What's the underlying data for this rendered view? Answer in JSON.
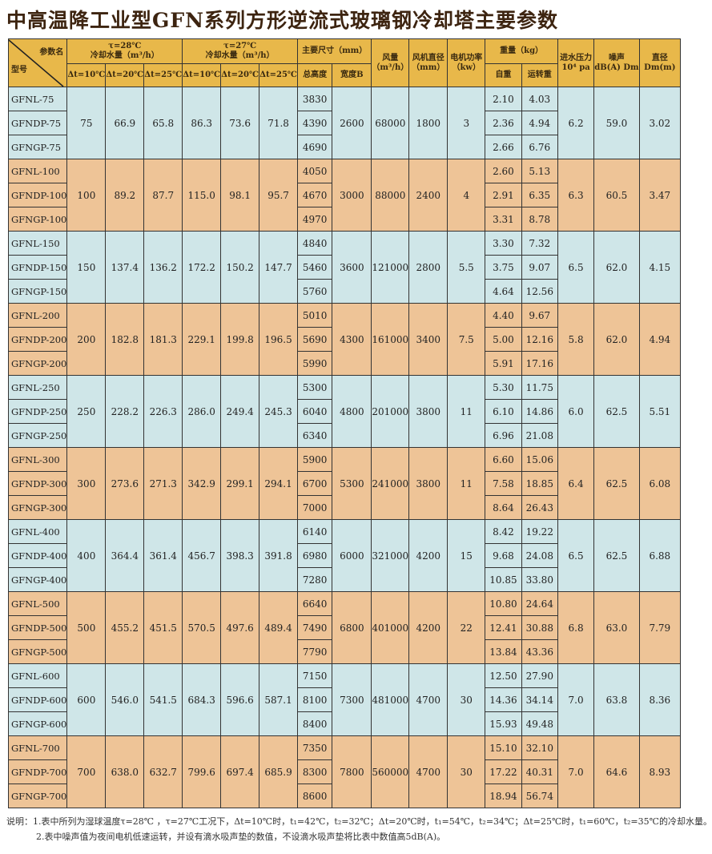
{
  "title": "中高温降工业型GFN系列方形逆流式玻璃钢冷却塔主要参数",
  "header": {
    "param_name": "参数名",
    "model": "型号",
    "g28_line1": "τ=28℃",
    "g28_line2": "冷却水量（m³/h）",
    "g27_line1": "τ=27℃",
    "g27_line2": "冷却水量（m³/h）",
    "dt10": "Δt=10℃",
    "dt20": "Δt=20℃",
    "dt25": "Δt=25℃",
    "dims": "主要尺寸（mm）",
    "total_height": "总高度",
    "width_b": "宽度B",
    "airflow": "风量",
    "airflow_unit": "（m³/h）",
    "fan_dia": "风机直径",
    "fan_dia_unit": "（mm）",
    "motor": "电机功率",
    "motor_unit": "（kw）",
    "weight": "重量（kg）",
    "self_weight": "自重",
    "run_weight": "运转重",
    "pressure": "进水压力",
    "pressure_unit": "10⁴ pa",
    "noise": "噪声",
    "noise_unit": "dB(A) Dm",
    "diameter": "直径",
    "diameter_unit": "Dm(m)"
  },
  "groups": [
    {
      "models": [
        "GFNL-75",
        "GFNDP-75",
        "GFNGP-75"
      ],
      "f28": [
        "75",
        "66.9",
        "65.8"
      ],
      "f27": [
        "86.3",
        "73.6",
        "71.8"
      ],
      "heights": [
        "3830",
        "4390",
        "4690"
      ],
      "width": "2600",
      "airflow": "68000",
      "fan": "1800",
      "motor": "3",
      "self": [
        "2.10",
        "2.36",
        "2.66"
      ],
      "run": [
        "4.03",
        "4.94",
        "6.76"
      ],
      "pressure": "6.2",
      "noise": "59.0",
      "dia": "3.02"
    },
    {
      "models": [
        "GFNL-100",
        "GFNDP-100",
        "GFNGP-100"
      ],
      "f28": [
        "100",
        "89.2",
        "87.7"
      ],
      "f27": [
        "115.0",
        "98.1",
        "95.7"
      ],
      "heights": [
        "4050",
        "4670",
        "4970"
      ],
      "width": "3000",
      "airflow": "88000",
      "fan": "2400",
      "motor": "4",
      "self": [
        "2.60",
        "2.91",
        "3.31"
      ],
      "run": [
        "5.13",
        "6.35",
        "8.78"
      ],
      "pressure": "6.3",
      "noise": "60.5",
      "dia": "3.47"
    },
    {
      "models": [
        "GFNL-150",
        "GFNDP-150",
        "GFNGP-150"
      ],
      "f28": [
        "150",
        "137.4",
        "136.2"
      ],
      "f27": [
        "172.2",
        "150.2",
        "147.7"
      ],
      "heights": [
        "4840",
        "5460",
        "5760"
      ],
      "width": "3600",
      "airflow": "121000",
      "fan": "2800",
      "motor": "5.5",
      "self": [
        "3.30",
        "3.75",
        "4.64"
      ],
      "run": [
        "7.32",
        "9.07",
        "12.56"
      ],
      "pressure": "6.5",
      "noise": "62.0",
      "dia": "4.15"
    },
    {
      "models": [
        "GFNL-200",
        "GFNDP-200",
        "GFNGP-200"
      ],
      "f28": [
        "200",
        "182.8",
        "181.3"
      ],
      "f27": [
        "229.1",
        "199.8",
        "196.5"
      ],
      "heights": [
        "5010",
        "5690",
        "5990"
      ],
      "width": "4300",
      "airflow": "161000",
      "fan": "3400",
      "motor": "7.5",
      "self": [
        "4.40",
        "5.00",
        "5.91"
      ],
      "run": [
        "9.67",
        "12.16",
        "17.16"
      ],
      "pressure": "5.8",
      "noise": "62.0",
      "dia": "4.94"
    },
    {
      "models": [
        "GFNL-250",
        "GFNDP-250",
        "GFNGP-250"
      ],
      "f28": [
        "250",
        "228.2",
        "226.3"
      ],
      "f27": [
        "286.0",
        "249.4",
        "245.3"
      ],
      "heights": [
        "5300",
        "6040",
        "6340"
      ],
      "width": "4800",
      "airflow": "201000",
      "fan": "3800",
      "motor": "11",
      "self": [
        "5.30",
        "6.10",
        "6.96"
      ],
      "run": [
        "11.75",
        "14.86",
        "21.08"
      ],
      "pressure": "6.0",
      "noise": "62.5",
      "dia": "5.51"
    },
    {
      "models": [
        "GFNL-300",
        "GFNDP-300",
        "GFNGP-300"
      ],
      "f28": [
        "300",
        "273.6",
        "271.3"
      ],
      "f27": [
        "342.9",
        "299.1",
        "294.1"
      ],
      "heights": [
        "5900",
        "6700",
        "7000"
      ],
      "width": "5300",
      "airflow": "241000",
      "fan": "3800",
      "motor": "11",
      "self": [
        "6.60",
        "7.58",
        "8.64"
      ],
      "run": [
        "15.06",
        "18.85",
        "26.43"
      ],
      "pressure": "6.4",
      "noise": "62.5",
      "dia": "6.08"
    },
    {
      "models": [
        "GFNL-400",
        "GFNDP-400",
        "GFNGP-400"
      ],
      "f28": [
        "400",
        "364.4",
        "361.4"
      ],
      "f27": [
        "456.7",
        "398.3",
        "391.8"
      ],
      "heights": [
        "6140",
        "6980",
        "7280"
      ],
      "width": "6000",
      "airflow": "321000",
      "fan": "4200",
      "motor": "15",
      "self": [
        "8.42",
        "9.68",
        "10.85"
      ],
      "run": [
        "19.22",
        "24.08",
        "33.80"
      ],
      "pressure": "6.5",
      "noise": "62.5",
      "dia": "6.88"
    },
    {
      "models": [
        "GFNL-500",
        "GFNDP-500",
        "GFNGP-500"
      ],
      "f28": [
        "500",
        "455.2",
        "451.5"
      ],
      "f27": [
        "570.5",
        "497.6",
        "489.4"
      ],
      "heights": [
        "6640",
        "7490",
        "7790"
      ],
      "width": "6800",
      "airflow": "401000",
      "fan": "4200",
      "motor": "22",
      "self": [
        "10.80",
        "12.41",
        "13.84"
      ],
      "run": [
        "24.64",
        "30.88",
        "43.36"
      ],
      "pressure": "6.8",
      "noise": "63.0",
      "dia": "7.79"
    },
    {
      "models": [
        "GFNL-600",
        "GFNDP-600",
        "GFNGP-600"
      ],
      "f28": [
        "600",
        "546.0",
        "541.5"
      ],
      "f27": [
        "684.3",
        "596.6",
        "587.1"
      ],
      "heights": [
        "7150",
        "8100",
        "8400"
      ],
      "width": "7300",
      "airflow": "481000",
      "fan": "4700",
      "motor": "30",
      "self": [
        "12.50",
        "14.36",
        "15.93"
      ],
      "run": [
        "27.90",
        "34.14",
        "49.48"
      ],
      "pressure": "7.0",
      "noise": "63.8",
      "dia": "8.36"
    },
    {
      "models": [
        "GFNL-700",
        "GFNDP-700",
        "GFNGP-700"
      ],
      "f28": [
        "700",
        "638.0",
        "632.7"
      ],
      "f27": [
        "799.6",
        "697.4",
        "685.9"
      ],
      "heights": [
        "7350",
        "8300",
        "8600"
      ],
      "width": "7800",
      "airflow": "560000",
      "fan": "4700",
      "motor": "30",
      "self": [
        "15.10",
        "17.22",
        "18.94"
      ],
      "run": [
        "32.10",
        "40.31",
        "56.74"
      ],
      "pressure": "7.0",
      "noise": "64.6",
      "dia": "8.93"
    }
  ],
  "notes": {
    "line1": "说明：1.表中所列为湿球温度τ=28℃ ，τ=27℃工况下，Δt=10℃时，t₁=42℃，t₂=32℃；Δt=20℃时，t₁=54℃，t₂=34℃；Δt=25℃时，t₁=60℃，t₂=35℃的冷却水量。",
    "line2": "2.表中噪声值为夜间电机低速运转，并设有滴水吸声垫的数值，不设滴水吸声垫将比表中数值高5dB(A)。"
  },
  "colors": {
    "header": "#e8b84a",
    "row_blue": "#cfe6e8",
    "row_orange": "#eec497",
    "title": "#3d2410"
  }
}
